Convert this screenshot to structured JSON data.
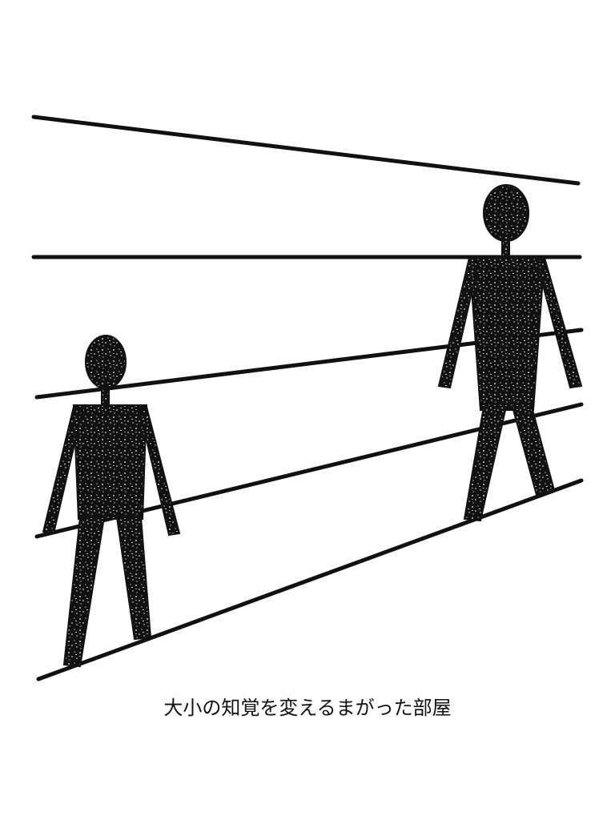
{
  "caption": "大小の知覚を変えるまがった部屋",
  "colors": {
    "background": "#ffffff",
    "ink": "#111111",
    "speckle": "#ffffff"
  },
  "figures": [
    {
      "name": "small-figure",
      "apparent_size": "small"
    },
    {
      "name": "large-figure",
      "apparent_size": "large"
    }
  ],
  "room_lines": [
    {
      "name": "ceiling-line"
    },
    {
      "name": "upper-wall-line"
    },
    {
      "name": "middle-wall-line"
    },
    {
      "name": "lower-wall-line"
    },
    {
      "name": "floor-line"
    }
  ]
}
